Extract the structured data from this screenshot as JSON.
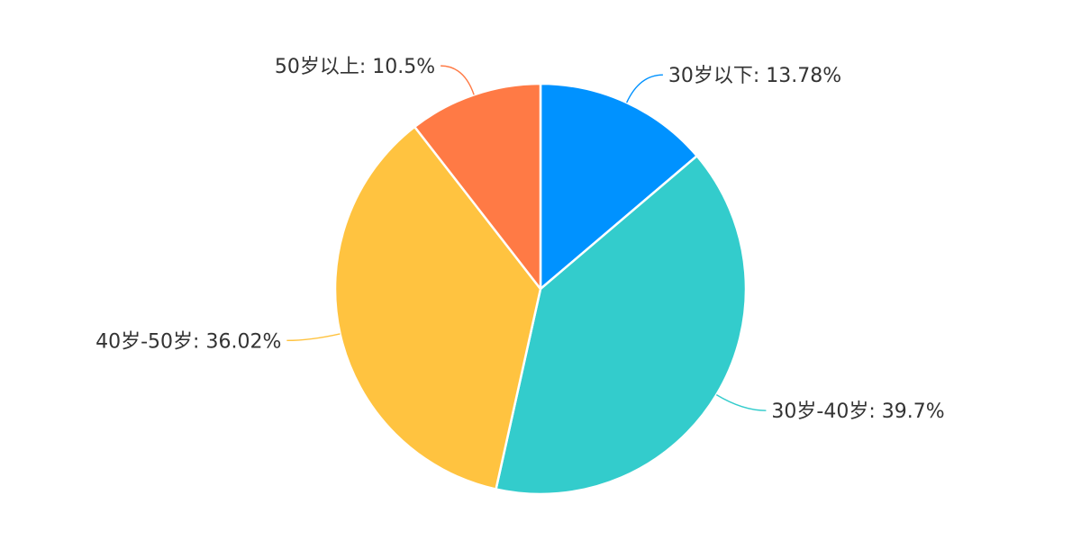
{
  "chart_data": {
    "type": "pie",
    "start_angle_deg": 0,
    "direction": "clockwise",
    "slices": [
      {
        "label": "30岁以下",
        "value": 13.78,
        "display": "30岁以下: 13.78%",
        "color": "#0092FF"
      },
      {
        "label": "30岁-40岁",
        "value": 39.7,
        "display": "30岁-40岁: 39.7%",
        "color": "#33CCCC"
      },
      {
        "label": "40岁-50岁",
        "value": 36.02,
        "display": "40岁-50岁: 36.02%",
        "color": "#FFC340"
      },
      {
        "label": "50岁以上",
        "value": 10.5,
        "display": "50岁以上: 10.5%",
        "color": "#FF7A45"
      }
    ]
  }
}
